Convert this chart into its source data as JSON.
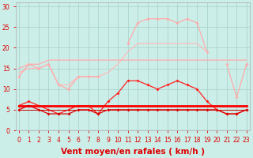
{
  "xlabel": "Vent moyen/en rafales ( km/h )",
  "background_color": "#cceee8",
  "grid_color": "#aad4cc",
  "x": [
    0,
    1,
    2,
    3,
    4,
    5,
    6,
    7,
    8,
    9,
    10,
    11,
    12,
    13,
    14,
    15,
    16,
    17,
    18,
    19,
    20,
    21,
    22,
    23
  ],
  "series": [
    {
      "y": [
        null,
        null,
        null,
        null,
        null,
        null,
        null,
        null,
        null,
        null,
        null,
        21,
        26,
        27,
        27,
        27,
        26,
        27,
        26,
        19,
        null,
        16,
        8,
        16
      ],
      "color": "#ffaaaa",
      "linewidth": 0.9,
      "marker": "D",
      "markersize": 2.0
    },
    {
      "y": [
        14,
        15,
        15,
        16,
        11,
        11,
        13,
        13,
        13,
        14,
        16,
        19,
        21,
        21,
        21,
        21,
        21,
        21,
        21,
        19,
        null,
        null,
        null,
        17
      ],
      "color": "#ffbbbb",
      "linewidth": 0.9,
      "marker": null,
      "markersize": 0
    },
    {
      "y": [
        15,
        16,
        16,
        17,
        17,
        17,
        17,
        17,
        17,
        17,
        17,
        17,
        17,
        17,
        17,
        17,
        17,
        17,
        17,
        17,
        17,
        17,
        17,
        17
      ],
      "color": "#ffaaaa",
      "linewidth": 0.9,
      "marker": null,
      "markersize": 0
    },
    {
      "y": [
        13,
        16,
        15,
        16,
        11,
        10,
        13,
        13,
        13,
        null,
        null,
        null,
        null,
        null,
        null,
        null,
        null,
        null,
        null,
        null,
        null,
        null,
        null,
        16
      ],
      "color": "#ffaaaa",
      "linewidth": 0.9,
      "marker": "D",
      "markersize": 2.0
    },
    {
      "y": [
        6,
        7,
        6,
        5,
        4,
        5,
        6,
        6,
        4,
        7,
        9,
        12,
        12,
        11,
        10,
        11,
        12,
        11,
        10,
        7,
        5,
        4,
        4,
        5
      ],
      "color": "#ff2020",
      "linewidth": 0.9,
      "marker": "D",
      "markersize": 2.0
    },
    {
      "y": [
        6,
        6,
        6,
        6,
        6,
        6,
        6,
        6,
        6,
        6,
        6,
        6,
        6,
        6,
        6,
        6,
        6,
        6,
        6,
        6,
        6,
        6,
        6,
        6
      ],
      "color": "#cc0000",
      "linewidth": 0.7,
      "marker": null,
      "markersize": 0
    },
    {
      "y": [
        5,
        5,
        5,
        5,
        5,
        5,
        5,
        5,
        5,
        5,
        5,
        5,
        5,
        5,
        5,
        5,
        5,
        5,
        5,
        5,
        5,
        5,
        5,
        5
      ],
      "color": "#cc0000",
      "linewidth": 0.7,
      "marker": null,
      "markersize": 0
    },
    {
      "y": [
        6,
        6,
        6,
        6,
        6,
        6,
        6,
        6,
        6,
        6,
        6,
        6,
        6,
        6,
        6,
        6,
        6,
        6,
        6,
        6,
        6,
        6,
        6,
        6
      ],
      "color": "#ff0000",
      "linewidth": 2.0,
      "marker": null,
      "markersize": 0
    },
    {
      "y": [
        5,
        6,
        5,
        4,
        4,
        4,
        5,
        5,
        4,
        5,
        5,
        5,
        5,
        5,
        5,
        5,
        5,
        5,
        5,
        5,
        5,
        4,
        4,
        5
      ],
      "color": "#dd0000",
      "linewidth": 0.9,
      "marker": "D",
      "markersize": 2.0
    }
  ],
  "ylim": [
    0,
    31
  ],
  "xlim": [
    -0.3,
    23.3
  ],
  "yticks": [
    0,
    5,
    10,
    15,
    20,
    25,
    30
  ],
  "xticks": [
    0,
    1,
    2,
    3,
    4,
    5,
    6,
    7,
    8,
    9,
    10,
    11,
    12,
    13,
    14,
    15,
    16,
    17,
    18,
    19,
    20,
    21,
    22,
    23
  ],
  "tick_color": "#dd0000",
  "label_color": "#dd0000",
  "xlabel_fontsize": 7.5
}
